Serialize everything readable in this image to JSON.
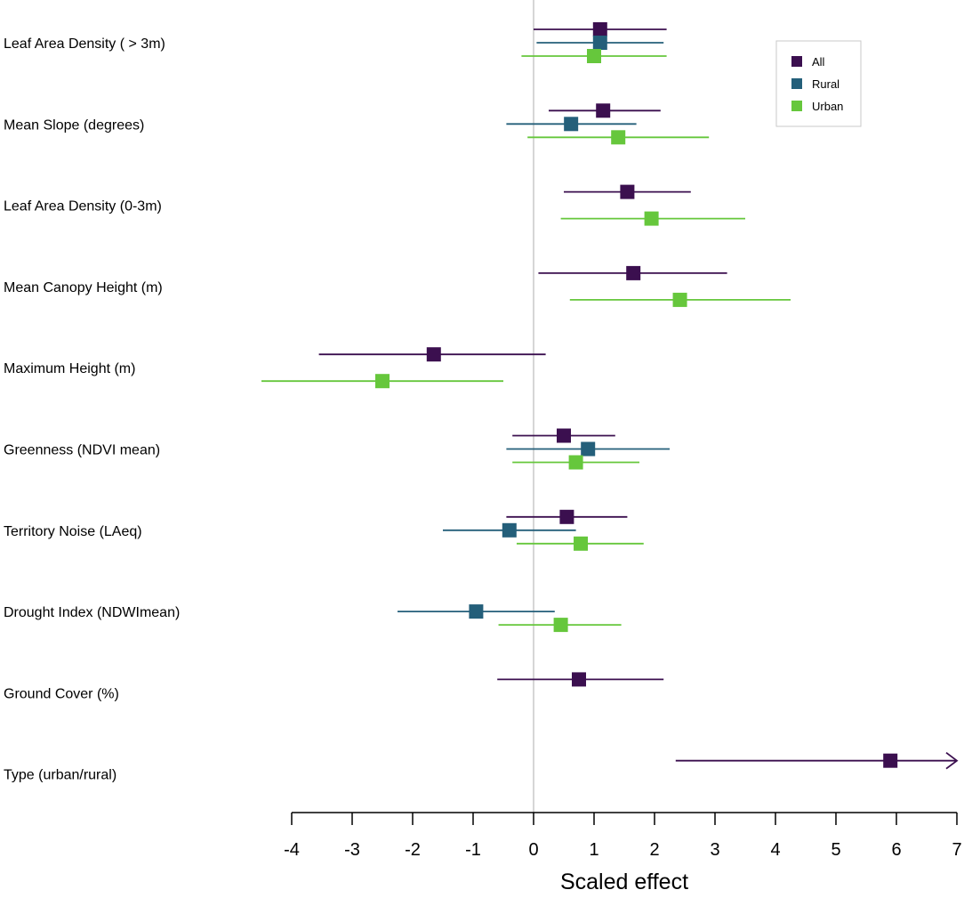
{
  "chart_data": {
    "type": "forest",
    "xlabel": "Scaled effect",
    "xlim": [
      -4,
      7
    ],
    "xticks": [
      -4,
      -3,
      -2,
      -1,
      0,
      1,
      2,
      3,
      4,
      5,
      6,
      7
    ],
    "reference_line": 0,
    "colors": {
      "All": "#3b0f4f",
      "Rural": "#245f7a",
      "Urban": "#66c73c"
    },
    "legend": {
      "position": "top-right",
      "entries": [
        "All",
        "Rural",
        "Urban"
      ]
    },
    "rows": [
      {
        "label": "Leaf Area Density ( > 3m)",
        "estimates": [
          {
            "group": "All",
            "est": 1.1,
            "lo": 0.0,
            "hi": 2.2
          },
          {
            "group": "Rural",
            "est": 1.1,
            "lo": 0.05,
            "hi": 2.15
          },
          {
            "group": "Urban",
            "est": 1.0,
            "lo": -0.2,
            "hi": 2.2
          }
        ]
      },
      {
        "label": "Mean Slope (degrees)",
        "estimates": [
          {
            "group": "All",
            "est": 1.15,
            "lo": 0.25,
            "hi": 2.1
          },
          {
            "group": "Rural",
            "est": 0.62,
            "lo": -0.45,
            "hi": 1.7
          },
          {
            "group": "Urban",
            "est": 1.4,
            "lo": -0.1,
            "hi": 2.9
          }
        ]
      },
      {
        "label": "Leaf Area Density (0-3m)",
        "estimates": [
          {
            "group": "All",
            "est": 1.55,
            "lo": 0.5,
            "hi": 2.6
          },
          {
            "group": "Urban",
            "est": 1.95,
            "lo": 0.45,
            "hi": 3.5
          }
        ]
      },
      {
        "label": "Mean Canopy Height (m)",
        "estimates": [
          {
            "group": "All",
            "est": 1.65,
            "lo": 0.08,
            "hi": 3.2
          },
          {
            "group": "Urban",
            "est": 2.42,
            "lo": 0.6,
            "hi": 4.25
          }
        ]
      },
      {
        "label": "Maximum Height (m)",
        "estimates": [
          {
            "group": "All",
            "est": -1.65,
            "lo": -3.55,
            "hi": 0.2
          },
          {
            "group": "Urban",
            "est": -2.5,
            "lo": -4.5,
            "hi": -0.5
          }
        ]
      },
      {
        "label": "Greenness (NDVI mean)",
        "estimates": [
          {
            "group": "All",
            "est": 0.5,
            "lo": -0.35,
            "hi": 1.35
          },
          {
            "group": "Rural",
            "est": 0.9,
            "lo": -0.45,
            "hi": 2.25
          },
          {
            "group": "Urban",
            "est": 0.7,
            "lo": -0.35,
            "hi": 1.75
          }
        ]
      },
      {
        "label": "Territory Noise (LAeq)",
        "estimates": [
          {
            "group": "All",
            "est": 0.55,
            "lo": -0.45,
            "hi": 1.55
          },
          {
            "group": "Rural",
            "est": -0.4,
            "lo": -1.5,
            "hi": 0.7
          },
          {
            "group": "Urban",
            "est": 0.78,
            "lo": -0.28,
            "hi": 1.82
          }
        ]
      },
      {
        "label": "Drought Index (NDWImean)",
        "estimates": [
          {
            "group": "Rural",
            "est": -0.95,
            "lo": -2.25,
            "hi": 0.35
          },
          {
            "group": "Urban",
            "est": 0.45,
            "lo": -0.58,
            "hi": 1.45
          }
        ]
      },
      {
        "label": "Ground Cover (%)",
        "estimates": [
          {
            "group": "All",
            "est": 0.75,
            "lo": -0.6,
            "hi": 2.15
          }
        ]
      },
      {
        "label": "Type (urban/rural)",
        "estimates": [
          {
            "group": "All",
            "est": 5.9,
            "lo": 2.35,
            "hi": 7.0,
            "arrow_right": true
          }
        ]
      }
    ]
  }
}
